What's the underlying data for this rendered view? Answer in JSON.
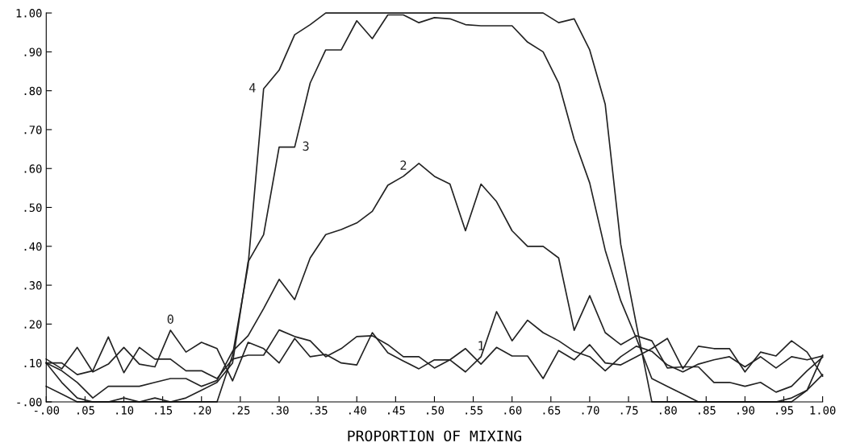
{
  "chart_data": {
    "type": "line",
    "xlabel": "PROPORTION OF MIXING",
    "x": [
      0,
      0.02,
      0.04,
      0.06,
      0.08,
      0.1,
      0.12,
      0.14,
      0.16,
      0.18,
      0.2,
      0.22,
      0.24,
      0.26,
      0.28,
      0.3,
      0.32,
      0.34,
      0.36,
      0.38,
      0.4,
      0.42,
      0.44,
      0.46,
      0.48,
      0.5,
      0.52,
      0.54,
      0.56,
      0.58,
      0.6,
      0.62,
      0.64,
      0.66,
      0.68,
      0.7,
      0.72,
      0.74,
      0.76,
      0.78,
      0.8,
      0.82,
      0.84,
      0.86,
      0.88,
      0.9,
      0.92,
      0.94,
      0.96,
      0.98,
      1.0
    ],
    "series": [
      {
        "name": "0",
        "color": "#222222",
        "values": [
          0.11,
          0.085,
          0.14,
          0.077,
          0.097,
          0.14,
          0.097,
          0.09,
          0.184,
          0.128,
          0.153,
          0.137,
          0.054,
          0.153,
          0.137,
          0.1,
          0.163,
          0.116,
          0.122,
          0.1,
          0.095,
          0.178,
          0.126,
          0.105,
          0.085,
          0.108,
          0.108,
          0.137,
          0.097,
          0.14,
          0.118,
          0.118,
          0.06,
          0.132,
          0.108,
          0.147,
          0.1,
          0.095,
          0.116,
          0.137,
          0.163,
          0.085,
          0.143,
          0.137,
          0.137,
          0.077,
          0.128,
          0.118,
          0.157,
          0.128,
          0.066
        ]
      },
      {
        "name": "1",
        "color": "#222222",
        "values": [
          0.1,
          0.1,
          0.07,
          0.08,
          0.167,
          0.075,
          0.14,
          0.11,
          0.11,
          0.08,
          0.08,
          0.06,
          0.11,
          0.12,
          0.12,
          0.185,
          0.168,
          0.157,
          0.116,
          0.137,
          0.168,
          0.17,
          0.147,
          0.116,
          0.116,
          0.087,
          0.108,
          0.077,
          0.116,
          0.232,
          0.157,
          0.21,
          0.178,
          0.157,
          0.13,
          0.116,
          0.08,
          0.116,
          0.143,
          0.13,
          0.095,
          0.077,
          0.097,
          0.108,
          0.116,
          0.09,
          0.116,
          0.087,
          0.116,
          0.108,
          0.118
        ]
      },
      {
        "name": "2",
        "color": "#222222",
        "values": [
          0.1,
          0.08,
          0.05,
          0.01,
          0.04,
          0.04,
          0.04,
          0.05,
          0.06,
          0.06,
          0.04,
          0.055,
          0.13,
          0.17,
          0.24,
          0.315,
          0.263,
          0.37,
          0.43,
          0.443,
          0.46,
          0.49,
          0.557,
          0.58,
          0.613,
          0.58,
          0.56,
          0.44,
          0.56,
          0.515,
          0.44,
          0.4,
          0.4,
          0.37,
          0.184,
          0.273,
          0.178,
          0.147,
          0.17,
          0.157,
          0.087,
          0.09,
          0.09,
          0.05,
          0.05,
          0.04,
          0.05,
          0.025,
          0.04,
          0.08,
          0.115
        ]
      },
      {
        "name": "3",
        "color": "#222222",
        "values": [
          0.04,
          0.02,
          0.0,
          0.0,
          0.0,
          0.01,
          0.0,
          0.01,
          0.0,
          0.01,
          0.03,
          0.05,
          0.1,
          0.36,
          0.43,
          0.655,
          0.655,
          0.82,
          0.905,
          0.905,
          0.98,
          0.934,
          0.995,
          0.995,
          0.975,
          0.988,
          0.985,
          0.97,
          0.967,
          0.967,
          0.967,
          0.925,
          0.9,
          0.82,
          0.675,
          0.563,
          0.39,
          0.26,
          0.164,
          0.06,
          0.04,
          0.02,
          0.0,
          0.0,
          0.0,
          0.0,
          0.0,
          0.0,
          0.0,
          0.03,
          0.12
        ]
      },
      {
        "name": "4",
        "color": "#222222",
        "values": [
          0.1,
          0.05,
          0.01,
          0.0,
          0.0,
          0.0,
          0.0,
          0.0,
          0.0,
          0.0,
          0.0,
          0.0,
          0.12,
          0.35,
          0.805,
          0.853,
          0.944,
          0.97,
          1.0,
          1.0,
          1.0,
          1.0,
          1.0,
          1.0,
          1.0,
          1.0,
          1.0,
          1.0,
          1.0,
          1.0,
          1.0,
          1.0,
          1.0,
          0.975,
          0.985,
          0.905,
          0.765,
          0.405,
          0.2,
          0.0,
          0.0,
          0.0,
          0.0,
          0.0,
          0.0,
          0.0,
          0.0,
          0.0,
          0.01,
          0.03,
          0.07
        ]
      }
    ],
    "xlim": [
      0,
      1.0
    ],
    "ylim": [
      0,
      1.0
    ],
    "xticks": [
      {
        "value": 0,
        "label": "-.00"
      },
      {
        "value": 0.05,
        "label": ".05"
      },
      {
        "value": 0.1,
        "label": ".10"
      },
      {
        "value": 0.15,
        "label": ".15"
      },
      {
        "value": 0.2,
        "label": ".20"
      },
      {
        "value": 0.25,
        "label": ".25"
      },
      {
        "value": 0.3,
        "label": ".30"
      },
      {
        "value": 0.35,
        "label": ".35"
      },
      {
        "value": 0.4,
        "label": ".40"
      },
      {
        "value": 0.45,
        "label": ".45"
      },
      {
        "value": 0.5,
        "label": ".50"
      },
      {
        "value": 0.55,
        "label": ".55"
      },
      {
        "value": 0.6,
        "label": ".60"
      },
      {
        "value": 0.65,
        "label": ".65"
      },
      {
        "value": 0.7,
        "label": ".70"
      },
      {
        "value": 0.75,
        "label": ".75"
      },
      {
        "value": 0.8,
        "label": ".80"
      },
      {
        "value": 0.85,
        "label": ".85"
      },
      {
        "value": 0.9,
        "label": ".90"
      },
      {
        "value": 0.95,
        "label": ".95"
      },
      {
        "value": 1.0,
        "label": "1.00"
      }
    ],
    "yticks": [
      {
        "value": 0,
        "label": "-.00"
      },
      {
        "value": 0.1,
        "label": ".10"
      },
      {
        "value": 0.2,
        "label": ".20"
      },
      {
        "value": 0.3,
        "label": ".30"
      },
      {
        "value": 0.4,
        "label": ".40"
      },
      {
        "value": 0.5,
        "label": ".50"
      },
      {
        "value": 0.6,
        "label": ".60"
      },
      {
        "value": 0.7,
        "label": ".70"
      },
      {
        "value": 0.8,
        "label": ".80"
      },
      {
        "value": 0.9,
        "label": ".90"
      },
      {
        "value": 1.0,
        "label": "1.00"
      }
    ],
    "grid": false,
    "legend": false,
    "line_style": "solid"
  }
}
